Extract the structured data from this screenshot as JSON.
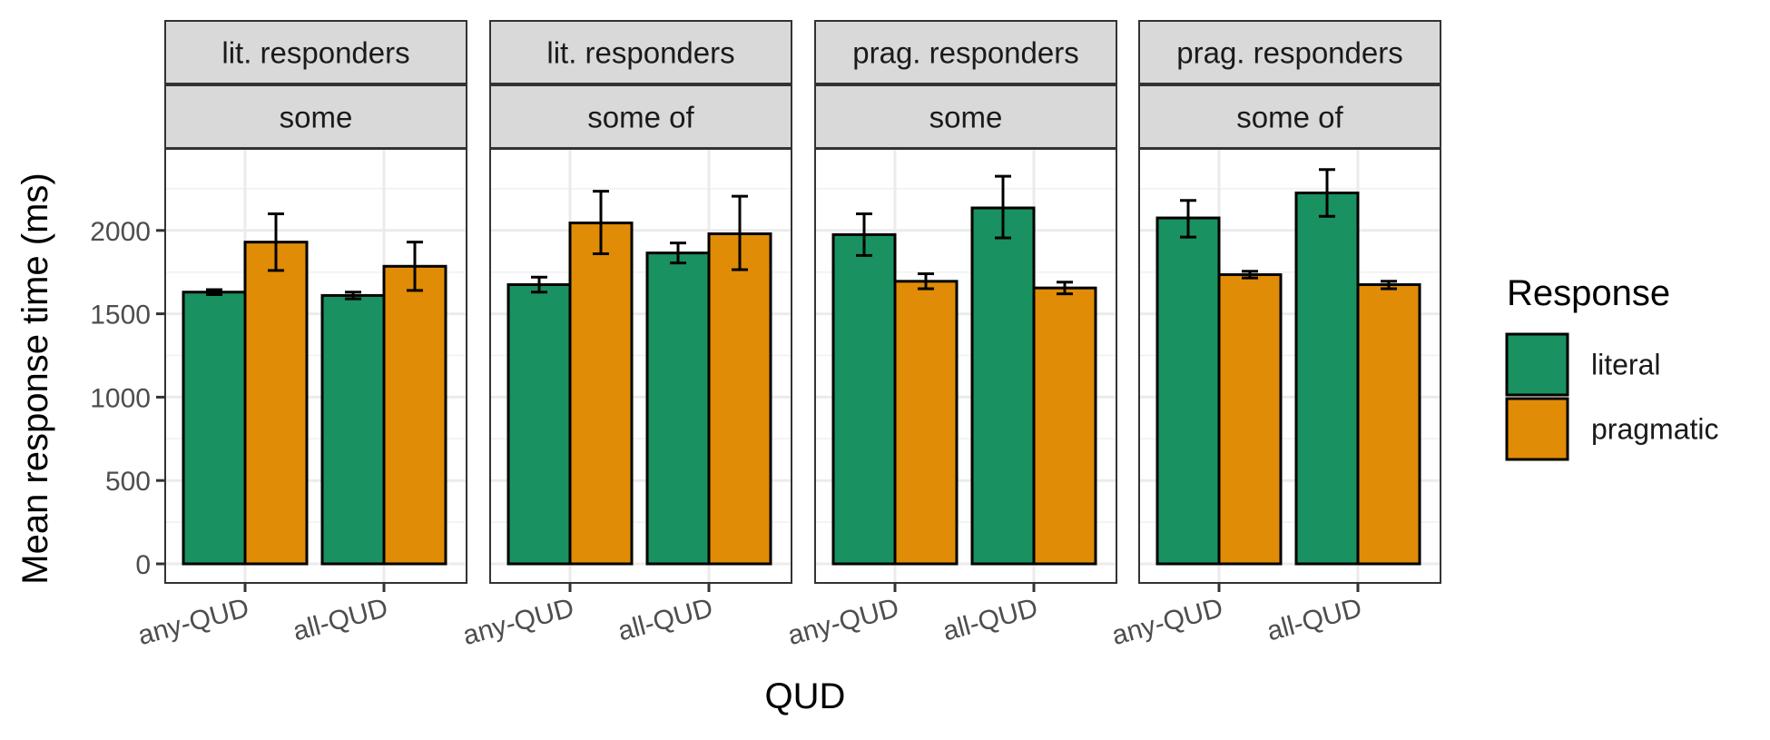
{
  "chart_data": {
    "type": "bar",
    "xlabel": "QUD",
    "ylabel": "Mean response time (ms)",
    "ylim": [
      0,
      2450
    ],
    "yticks": [
      0,
      500,
      1000,
      1500,
      2000
    ],
    "categories": [
      "any-QUD",
      "all-QUD"
    ],
    "legend": {
      "title": "Response",
      "position": "right",
      "entries": [
        {
          "name": "literal",
          "color": "#1a9160"
        },
        {
          "name": "pragmatic",
          "color": "#e08c06"
        }
      ]
    },
    "grid": true,
    "facets": [
      {
        "strip_top": "lit. responders",
        "strip_bottom": "some",
        "series": [
          {
            "name": "literal",
            "values": [
              1630,
              1610
            ],
            "errors": [
              [
                1615,
                1645
              ],
              [
                1590,
                1630
              ]
            ]
          },
          {
            "name": "pragmatic",
            "values": [
              1930,
              1785
            ],
            "errors": [
              [
                1760,
                2100
              ],
              [
                1640,
                1930
              ]
            ]
          }
        ]
      },
      {
        "strip_top": "lit. responders",
        "strip_bottom": "some of",
        "series": [
          {
            "name": "literal",
            "values": [
              1675,
              1865
            ],
            "errors": [
              [
                1630,
                1720
              ],
              [
                1805,
                1925
              ]
            ]
          },
          {
            "name": "pragmatic",
            "values": [
              2045,
              1980
            ],
            "errors": [
              [
                1860,
                2235
              ],
              [
                1765,
                2205
              ]
            ]
          }
        ]
      },
      {
        "strip_top": "prag. responders",
        "strip_bottom": "some",
        "series": [
          {
            "name": "literal",
            "values": [
              1975,
              2135
            ],
            "errors": [
              [
                1850,
                2100
              ],
              [
                1955,
                2325
              ]
            ]
          },
          {
            "name": "pragmatic",
            "values": [
              1695,
              1655
            ],
            "errors": [
              [
                1650,
                1740
              ],
              [
                1620,
                1690
              ]
            ]
          }
        ]
      },
      {
        "strip_top": "prag. responders",
        "strip_bottom": "some of",
        "series": [
          {
            "name": "literal",
            "values": [
              2075,
              2225
            ],
            "errors": [
              [
                1960,
                2180
              ],
              [
                2085,
                2365
              ]
            ]
          },
          {
            "name": "pragmatic",
            "values": [
              1735,
              1675
            ],
            "errors": [
              [
                1715,
                1755
              ],
              [
                1650,
                1695
              ]
            ]
          }
        ]
      }
    ]
  }
}
